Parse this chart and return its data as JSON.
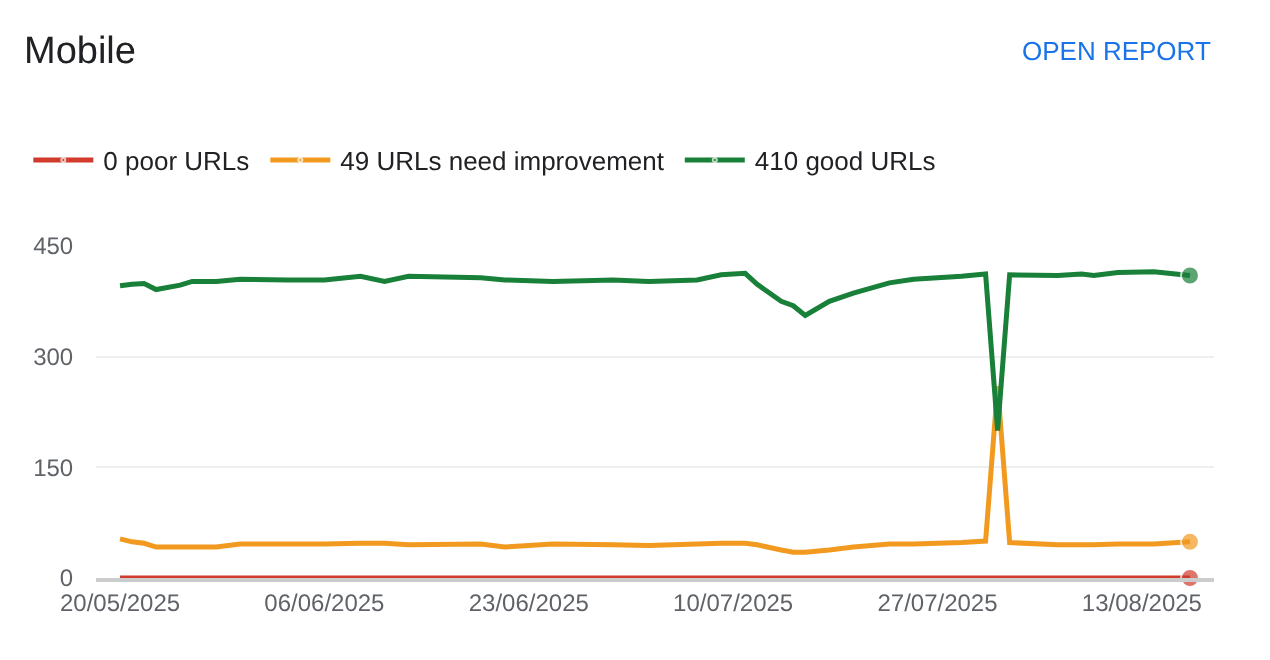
{
  "chart_data": {
    "type": "line",
    "title": "Mobile",
    "annotations": [
      "OPEN REPORT"
    ],
    "x": [
      "2025-05-20",
      "2025-05-21",
      "2025-05-22",
      "2025-05-23",
      "2025-05-25",
      "2025-05-26",
      "2025-05-28",
      "2025-05-30",
      "2025-06-03",
      "2025-06-06",
      "2025-06-09",
      "2025-06-11",
      "2025-06-13",
      "2025-06-19",
      "2025-06-21",
      "2025-06-25",
      "2025-06-30",
      "2025-07-03",
      "2025-07-07",
      "2025-07-09",
      "2025-07-11",
      "2025-07-12",
      "2025-07-14",
      "2025-07-15",
      "2025-07-16",
      "2025-07-18",
      "2025-07-20",
      "2025-07-23",
      "2025-07-25",
      "2025-07-29",
      "2025-07-31",
      "2025-08-01",
      "2025-08-02",
      "2025-08-06",
      "2025-08-08",
      "2025-08-09",
      "2025-08-11",
      "2025-08-14",
      "2025-08-17"
    ],
    "series": [
      {
        "name": "0 poor URLs",
        "color": "#d03b2c",
        "values": [
          0,
          0,
          0,
          0,
          0,
          0,
          0,
          0,
          0,
          0,
          0,
          0,
          0,
          0,
          0,
          0,
          0,
          0,
          0,
          0,
          0,
          0,
          0,
          0,
          0,
          0,
          0,
          0,
          0,
          0,
          0,
          0,
          0,
          0,
          0,
          0,
          0,
          0,
          0
        ]
      },
      {
        "name": "49 URLs need improvement",
        "color": "#f29a1f",
        "values": [
          53,
          49,
          47,
          42,
          42,
          42,
          42,
          46,
          46,
          46,
          47,
          47,
          45,
          46,
          42,
          46,
          45,
          44,
          46,
          47,
          47,
          45,
          38,
          35,
          35,
          38,
          42,
          46,
          46,
          48,
          50,
          260,
          48,
          45,
          45,
          45,
          46,
          46,
          49
        ]
      },
      {
        "name": "410 good URLs",
        "color": "#188038",
        "values": [
          396,
          398,
          399,
          391,
          397,
          402,
          402,
          405,
          404,
          404,
          409,
          402,
          409,
          407,
          404,
          402,
          404,
          402,
          404,
          411,
          413,
          398,
          375,
          369,
          356,
          375,
          386,
          400,
          405,
          409,
          412,
          200,
          411,
          410,
          412,
          410,
          414,
          415,
          410
        ]
      }
    ],
    "xlim": [
      "2025-05-18",
      "2025-08-19"
    ],
    "xticks": [
      {
        "value": "2025-05-20",
        "label": "20/05/2025"
      },
      {
        "value": "2025-06-06",
        "label": "06/06/2025"
      },
      {
        "value": "2025-06-23",
        "label": "23/06/2025"
      },
      {
        "value": "2025-07-10",
        "label": "10/07/2025"
      },
      {
        "value": "2025-07-27",
        "label": "27/07/2025"
      },
      {
        "value": "2025-08-13",
        "label": "13/08/2025"
      }
    ],
    "ylim": [
      0,
      450
    ],
    "yticks": [
      0,
      150,
      300,
      450
    ],
    "grid": "y",
    "legend": "top left",
    "line_style": "solid"
  }
}
